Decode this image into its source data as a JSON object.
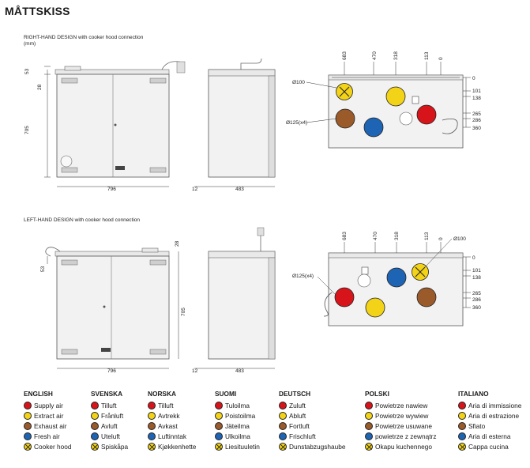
{
  "title": "MÅTTSKISS",
  "top": {
    "caption": "RIGHT-HAND DESIGN with cooker hood connection",
    "unit": "(mm)",
    "dims": {
      "d53": "53",
      "d28": "28",
      "d705": "705",
      "d796": "796",
      "d12": "12",
      "d483": "483",
      "c683": "683",
      "c470": "470",
      "c318": "318",
      "c113": "113",
      "c0": "0",
      "r0": "0",
      "r101": "101",
      "r138": "138",
      "r265": "265",
      "r286": "286",
      "r360": "360",
      "dia100": "Ø100",
      "dia125": "Ø125(x4)"
    }
  },
  "bottom": {
    "caption": "LEFT-HAND DESIGN with cooker hood connection",
    "dims": {
      "d28": "28",
      "d53": "53",
      "d705": "705",
      "d796": "796",
      "d12": "12",
      "d483": "483",
      "c683": "683",
      "c470": "470",
      "c318": "318",
      "c113": "113",
      "c0": "0",
      "r0": "0",
      "r101": "101",
      "r138": "138",
      "r265": "265",
      "r286": "286",
      "r360": "360",
      "dia100": "Ø100",
      "dia125": "Ø125(x4)"
    }
  },
  "colors": {
    "supply": "#d8141b",
    "extract": "#f3d317",
    "exhaust": "#9a5a2a",
    "fresh": "#1e64b4",
    "hood": "#f3d317"
  },
  "legend": [
    {
      "lang": "ENGLISH",
      "items": [
        "Supply air",
        "Extract air",
        "Exhaust air",
        "Fresh air",
        "Cooker hood"
      ]
    },
    {
      "lang": "SVENSKA",
      "items": [
        "Tilluft",
        "Frånluft",
        "Avluft",
        "Uteluft",
        "Spiskåpa"
      ]
    },
    {
      "lang": "NORSKA",
      "items": [
        "Tilluft",
        "Avtrekk",
        "Avkast",
        "Luftinntak",
        "Kjøkkenhette"
      ]
    },
    {
      "lang": "SUOMI",
      "items": [
        "Tuloilma",
        "Poistoilma",
        "Jäteilma",
        "Ulkoilma",
        "Liesituuletin"
      ]
    },
    {
      "lang": "DEUTSCH",
      "items": [
        "Zuluft",
        "Abluft",
        "Fortluft",
        "Frischluft",
        "Dunstabzugshaube"
      ]
    },
    {
      "lang": "POLSKI",
      "items": [
        "Powietrze nawiew",
        "Powietrze wywiew",
        "Powietrze usuwane",
        "powietrze z zewnątrz",
        "Okapu kuchennego"
      ]
    },
    {
      "lang": "ITALIANO",
      "items": [
        "Aria di immissione",
        "Aria di estrazione",
        "Sfiato",
        "Aria di esterna",
        "Cappa cucina"
      ]
    }
  ]
}
